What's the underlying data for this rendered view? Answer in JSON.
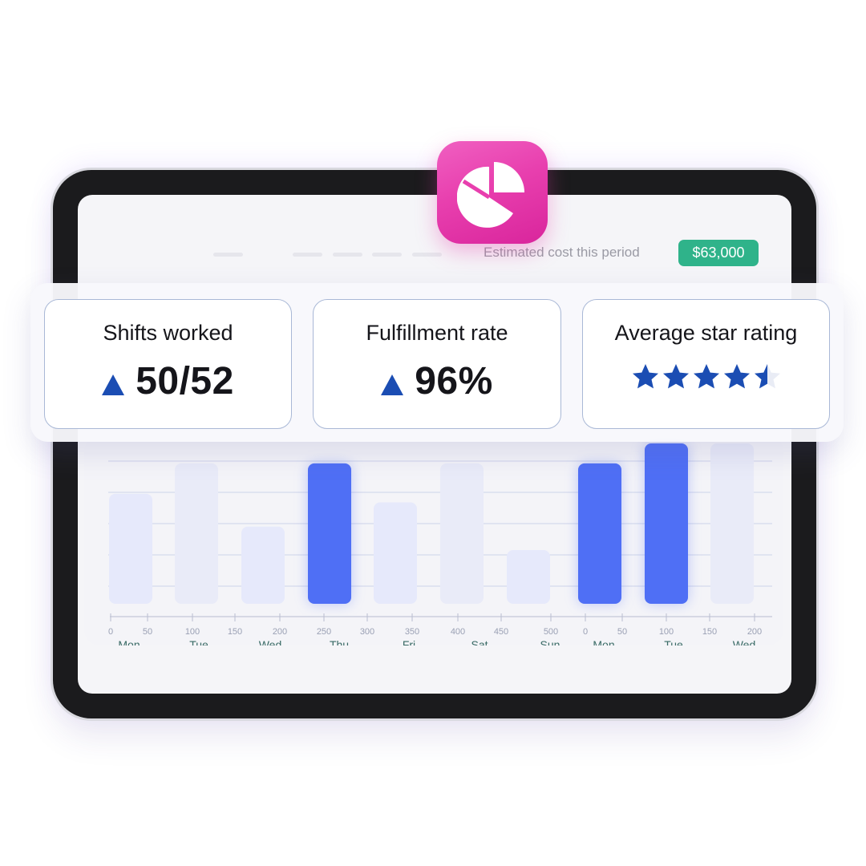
{
  "header": {
    "cost_label": "Estimated cost this period",
    "cost_value": "$63,000"
  },
  "metrics": [
    {
      "title": "Shifts worked",
      "value": "50/52",
      "trend": "up"
    },
    {
      "title": "Fulfillment rate",
      "value": "96%",
      "trend": "up"
    },
    {
      "title": "Average star rating",
      "rating": 4.5,
      "max_rating": 5
    }
  ],
  "icons": {
    "app": "pie-chart-icon",
    "trend": "triangle-up-icon",
    "rating": "star-icon"
  },
  "colors": {
    "app_icon": "#e83fae",
    "cost_badge": "#2fb38a",
    "accent_bar": "#4f6ff5",
    "trend_arrow": "#1b4db3",
    "star": "#1b4db3"
  },
  "chart_data": {
    "type": "bar",
    "categories": [
      "Mon",
      "Tue",
      "Wed",
      "Thu",
      "Fri",
      "Sat",
      "Sun",
      "Mon",
      "Tue",
      "Wed"
    ],
    "values": [
      127,
      162,
      89,
      162,
      117,
      162,
      62,
      162,
      185,
      185
    ],
    "highlighted": [
      false,
      false,
      false,
      true,
      false,
      false,
      false,
      true,
      true,
      false
    ],
    "x_tick_labels": [
      "0",
      "50",
      "100",
      "150",
      "200",
      "250",
      "300",
      "350",
      "400",
      "450",
      "500",
      "0",
      "50",
      "100",
      "150",
      "200"
    ],
    "gridlines": true
  }
}
